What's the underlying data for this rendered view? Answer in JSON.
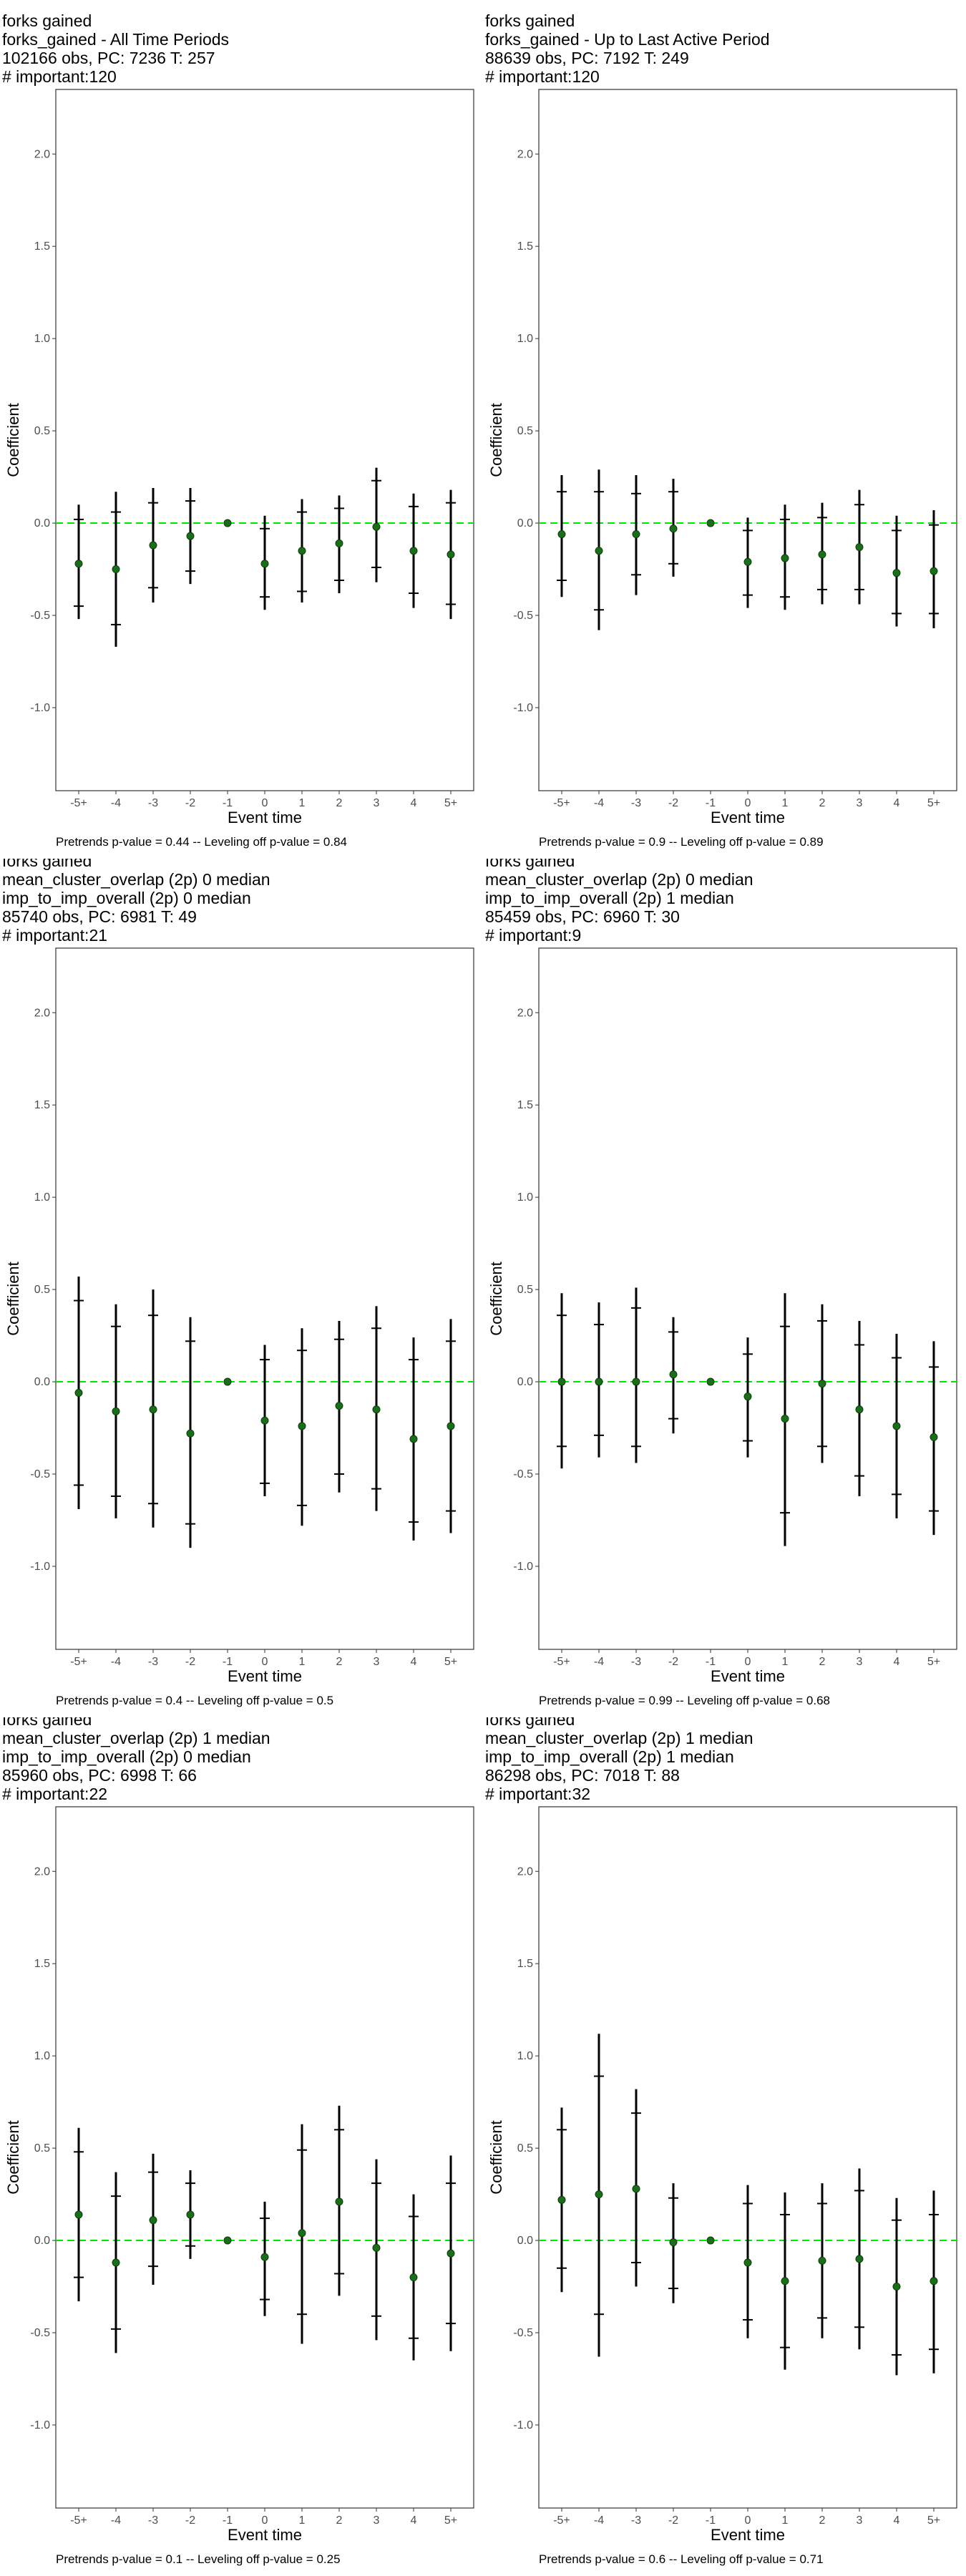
{
  "chart_data": [
    {
      "type": "scatter",
      "title_lines": [
        "forks gained",
        "forks_gained - All Time Periods",
        "102166 obs, PC: 7236 T: 257",
        "# important:120"
      ],
      "xlabel": "Event time",
      "ylabel": "Coefficient",
      "categories": [
        "-5+",
        "-4",
        "-3",
        "-2",
        "-1",
        "0",
        "1",
        "2",
        "3",
        "4",
        "5+"
      ],
      "yticks": [
        "2.0",
        "1.5",
        "1.0",
        "0.5",
        "0.0",
        "-0.5",
        "-1.0"
      ],
      "ylim": [
        -1.45,
        2.35
      ],
      "estimates": [
        -0.22,
        -0.25,
        -0.12,
        -0.07,
        0.0,
        -0.22,
        -0.15,
        -0.11,
        -0.02,
        -0.15,
        -0.17
      ],
      "ci95": [
        [
          -0.52,
          0.1
        ],
        [
          -0.67,
          0.17
        ],
        [
          -0.43,
          0.19
        ],
        [
          -0.33,
          0.19
        ],
        [
          0.0,
          0.0
        ],
        [
          -0.47,
          0.04
        ],
        [
          -0.43,
          0.13
        ],
        [
          -0.38,
          0.15
        ],
        [
          -0.32,
          0.3
        ],
        [
          -0.46,
          0.16
        ],
        [
          -0.52,
          0.18
        ]
      ],
      "ci90": [
        [
          -0.45,
          0.02
        ],
        [
          -0.55,
          0.06
        ],
        [
          -0.35,
          0.11
        ],
        [
          -0.26,
          0.12
        ],
        [
          0.0,
          0.0
        ],
        [
          -0.4,
          -0.03
        ],
        [
          -0.37,
          0.06
        ],
        [
          -0.31,
          0.08
        ],
        [
          -0.24,
          0.23
        ],
        [
          -0.38,
          0.09
        ],
        [
          -0.44,
          0.11
        ]
      ],
      "reference_line": 0,
      "footnote": "Pretrends p-value = 0.44 -- Leveling off p-value = 0.84"
    },
    {
      "type": "scatter",
      "title_lines": [
        "forks gained",
        "forks_gained - Up to Last Active Period",
        "88639 obs, PC: 7192 T: 249",
        "# important:120"
      ],
      "xlabel": "Event time",
      "ylabel": "Coefficient",
      "categories": [
        "-5+",
        "-4",
        "-3",
        "-2",
        "-1",
        "0",
        "1",
        "2",
        "3",
        "4",
        "5+"
      ],
      "yticks": [
        "2.0",
        "1.5",
        "1.0",
        "0.5",
        "0.0",
        "-0.5",
        "-1.0"
      ],
      "ylim": [
        -1.45,
        2.35
      ],
      "estimates": [
        -0.06,
        -0.15,
        -0.06,
        -0.03,
        0.0,
        -0.21,
        -0.19,
        -0.17,
        -0.13,
        -0.27,
        -0.26
      ],
      "ci95": [
        [
          -0.4,
          0.26
        ],
        [
          -0.58,
          0.29
        ],
        [
          -0.39,
          0.26
        ],
        [
          -0.29,
          0.24
        ],
        [
          0.0,
          0.0
        ],
        [
          -0.46,
          0.03
        ],
        [
          -0.47,
          0.1
        ],
        [
          -0.44,
          0.11
        ],
        [
          -0.44,
          0.18
        ],
        [
          -0.56,
          0.04
        ],
        [
          -0.57,
          0.07
        ]
      ],
      "ci90": [
        [
          -0.31,
          0.17
        ],
        [
          -0.47,
          0.17
        ],
        [
          -0.28,
          0.16
        ],
        [
          -0.22,
          0.17
        ],
        [
          0.0,
          0.0
        ],
        [
          -0.39,
          -0.04
        ],
        [
          -0.4,
          0.02
        ],
        [
          -0.36,
          0.03
        ],
        [
          -0.36,
          0.1
        ],
        [
          -0.49,
          -0.04
        ],
        [
          -0.49,
          -0.01
        ]
      ],
      "reference_line": 0,
      "footnote": "Pretrends p-value = 0.9 -- Leveling off p-value = 0.89"
    },
    {
      "type": "scatter",
      "title_lines": [
        "forks gained",
        "mean_cluster_overlap (2p) 0 median",
        "imp_to_imp_overall (2p) 0 median",
        "85740 obs, PC: 6981 T: 49",
        "# important:21"
      ],
      "xlabel": "Event time",
      "ylabel": "Coefficient",
      "categories": [
        "-5+",
        "-4",
        "-3",
        "-2",
        "-1",
        "0",
        "1",
        "2",
        "3",
        "4",
        "5+"
      ],
      "yticks": [
        "2.0",
        "1.5",
        "1.0",
        "0.5",
        "0.0",
        "-0.5",
        "-1.0"
      ],
      "ylim": [
        -1.45,
        2.35
      ],
      "estimates": [
        -0.06,
        -0.16,
        -0.15,
        -0.28,
        0.0,
        -0.21,
        -0.24,
        -0.13,
        -0.15,
        -0.31,
        -0.24
      ],
      "ci95": [
        [
          -0.69,
          0.57
        ],
        [
          -0.74,
          0.42
        ],
        [
          -0.79,
          0.5
        ],
        [
          -0.9,
          0.35
        ],
        [
          0.0,
          0.0
        ],
        [
          -0.62,
          0.2
        ],
        [
          -0.78,
          0.29
        ],
        [
          -0.6,
          0.33
        ],
        [
          -0.7,
          0.41
        ],
        [
          -0.86,
          0.24
        ],
        [
          -0.82,
          0.34
        ]
      ],
      "ci90": [
        [
          -0.56,
          0.44
        ],
        [
          -0.62,
          0.3
        ],
        [
          -0.66,
          0.36
        ],
        [
          -0.77,
          0.22
        ],
        [
          0.0,
          0.0
        ],
        [
          -0.55,
          0.12
        ],
        [
          -0.67,
          0.17
        ],
        [
          -0.5,
          0.23
        ],
        [
          -0.58,
          0.29
        ],
        [
          -0.76,
          0.12
        ],
        [
          -0.7,
          0.22
        ]
      ],
      "reference_line": 0,
      "footnote": "Pretrends p-value = 0.4 -- Leveling off p-value = 0.5"
    },
    {
      "type": "scatter",
      "title_lines": [
        "forks gained",
        "mean_cluster_overlap (2p) 0 median",
        "imp_to_imp_overall (2p) 1 median",
        "85459 obs, PC: 6960 T: 30",
        "# important:9"
      ],
      "xlabel": "Event time",
      "ylabel": "Coefficient",
      "categories": [
        "-5+",
        "-4",
        "-3",
        "-2",
        "-1",
        "0",
        "1",
        "2",
        "3",
        "4",
        "5+"
      ],
      "yticks": [
        "2.0",
        "1.5",
        "1.0",
        "0.5",
        "0.0",
        "-0.5",
        "-1.0"
      ],
      "ylim": [
        -1.45,
        2.35
      ],
      "estimates": [
        0.0,
        0.0,
        0.0,
        0.04,
        0.0,
        -0.08,
        -0.2,
        -0.01,
        -0.15,
        -0.24,
        -0.3
      ],
      "ci95": [
        [
          -0.47,
          0.48
        ],
        [
          -0.41,
          0.43
        ],
        [
          -0.44,
          0.51
        ],
        [
          -0.28,
          0.35
        ],
        [
          0.0,
          0.0
        ],
        [
          -0.41,
          0.24
        ],
        [
          -0.89,
          0.48
        ],
        [
          -0.44,
          0.42
        ],
        [
          -0.62,
          0.33
        ],
        [
          -0.74,
          0.26
        ],
        [
          -0.83,
          0.22
        ]
      ],
      "ci90": [
        [
          -0.35,
          0.36
        ],
        [
          -0.29,
          0.31
        ],
        [
          -0.35,
          0.4
        ],
        [
          -0.2,
          0.27
        ],
        [
          0.0,
          0.0
        ],
        [
          -0.32,
          0.15
        ],
        [
          -0.71,
          0.3
        ],
        [
          -0.35,
          0.33
        ],
        [
          -0.51,
          0.2
        ],
        [
          -0.61,
          0.13
        ],
        [
          -0.7,
          0.08
        ]
      ],
      "reference_line": 0,
      "footnote": "Pretrends p-value = 0.99 -- Leveling off p-value = 0.68"
    },
    {
      "type": "scatter",
      "title_lines": [
        "forks gained",
        "mean_cluster_overlap (2p) 1 median",
        "imp_to_imp_overall (2p) 0 median",
        "85960 obs, PC: 6998 T: 66",
        "# important:22"
      ],
      "xlabel": "Event time",
      "ylabel": "Coefficient",
      "categories": [
        "-5+",
        "-4",
        "-3",
        "-2",
        "-1",
        "0",
        "1",
        "2",
        "3",
        "4",
        "5+"
      ],
      "yticks": [
        "2.0",
        "1.5",
        "1.0",
        "0.5",
        "0.0",
        "-0.5",
        "-1.0"
      ],
      "ylim": [
        -1.45,
        2.35
      ],
      "estimates": [
        0.14,
        -0.12,
        0.11,
        0.14,
        0.0,
        -0.09,
        0.04,
        0.21,
        -0.04,
        -0.2,
        -0.07
      ],
      "ci95": [
        [
          -0.33,
          0.61
        ],
        [
          -0.61,
          0.37
        ],
        [
          -0.24,
          0.47
        ],
        [
          -0.1,
          0.38
        ],
        [
          0.0,
          0.0
        ],
        [
          -0.41,
          0.21
        ],
        [
          -0.56,
          0.63
        ],
        [
          -0.3,
          0.73
        ],
        [
          -0.54,
          0.44
        ],
        [
          -0.65,
          0.25
        ],
        [
          -0.6,
          0.46
        ]
      ],
      "ci90": [
        [
          -0.2,
          0.48
        ],
        [
          -0.48,
          0.24
        ],
        [
          -0.14,
          0.37
        ],
        [
          -0.03,
          0.31
        ],
        [
          0.0,
          0.0
        ],
        [
          -0.32,
          0.12
        ],
        [
          -0.4,
          0.49
        ],
        [
          -0.18,
          0.6
        ],
        [
          -0.41,
          0.31
        ],
        [
          -0.53,
          0.13
        ],
        [
          -0.45,
          0.31
        ]
      ],
      "reference_line": 0,
      "footnote": "Pretrends p-value = 0.1 -- Leveling off p-value = 0.25"
    },
    {
      "type": "scatter",
      "title_lines": [
        "forks gained",
        "mean_cluster_overlap (2p) 1 median",
        "imp_to_imp_overall (2p) 1 median",
        "86298 obs, PC: 7018 T: 88",
        "# important:32"
      ],
      "xlabel": "Event time",
      "ylabel": "Coefficient",
      "categories": [
        "-5+",
        "-4",
        "-3",
        "-2",
        "-1",
        "0",
        "1",
        "2",
        "3",
        "4",
        "5+"
      ],
      "yticks": [
        "2.0",
        "1.5",
        "1.0",
        "0.5",
        "0.0",
        "-0.5",
        "-1.0"
      ],
      "ylim": [
        -1.45,
        2.35
      ],
      "estimates": [
        0.22,
        0.25,
        0.28,
        -0.01,
        0.0,
        -0.12,
        -0.22,
        -0.11,
        -0.1,
        -0.25,
        -0.22
      ],
      "ci95": [
        [
          -0.28,
          0.72
        ],
        [
          -0.63,
          1.12
        ],
        [
          -0.25,
          0.82
        ],
        [
          -0.34,
          0.31
        ],
        [
          0.0,
          0.0
        ],
        [
          -0.53,
          0.3
        ],
        [
          -0.7,
          0.26
        ],
        [
          -0.53,
          0.31
        ],
        [
          -0.59,
          0.39
        ],
        [
          -0.73,
          0.23
        ],
        [
          -0.72,
          0.27
        ]
      ],
      "ci90": [
        [
          -0.15,
          0.6
        ],
        [
          -0.4,
          0.89
        ],
        [
          -0.12,
          0.69
        ],
        [
          -0.26,
          0.23
        ],
        [
          0.0,
          0.0
        ],
        [
          -0.43,
          0.2
        ],
        [
          -0.58,
          0.14
        ],
        [
          -0.42,
          0.2
        ],
        [
          -0.47,
          0.27
        ],
        [
          -0.62,
          0.11
        ],
        [
          -0.59,
          0.14
        ]
      ],
      "reference_line": 0,
      "footnote": "Pretrends p-value = 0.6 -- Leveling off p-value = 0.71"
    }
  ],
  "colors": {
    "point": "#1a6e1a",
    "reference_line": "#00e600",
    "errorbar": "#000000",
    "axis_text": "#4d4d4d",
    "panel_border": "#333333"
  }
}
